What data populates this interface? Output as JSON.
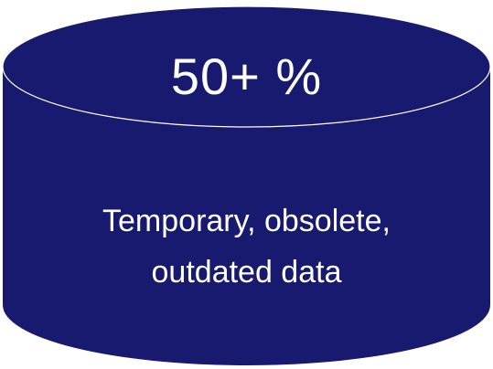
{
  "cylinder": {
    "value": "50+ %",
    "description_lines": [
      "Temporary, obsolete,",
      "outdated data"
    ]
  },
  "colors": {
    "body": "#171a6e",
    "outline": "#ffffff",
    "text": "#ffffff",
    "background": "#ffffff"
  }
}
